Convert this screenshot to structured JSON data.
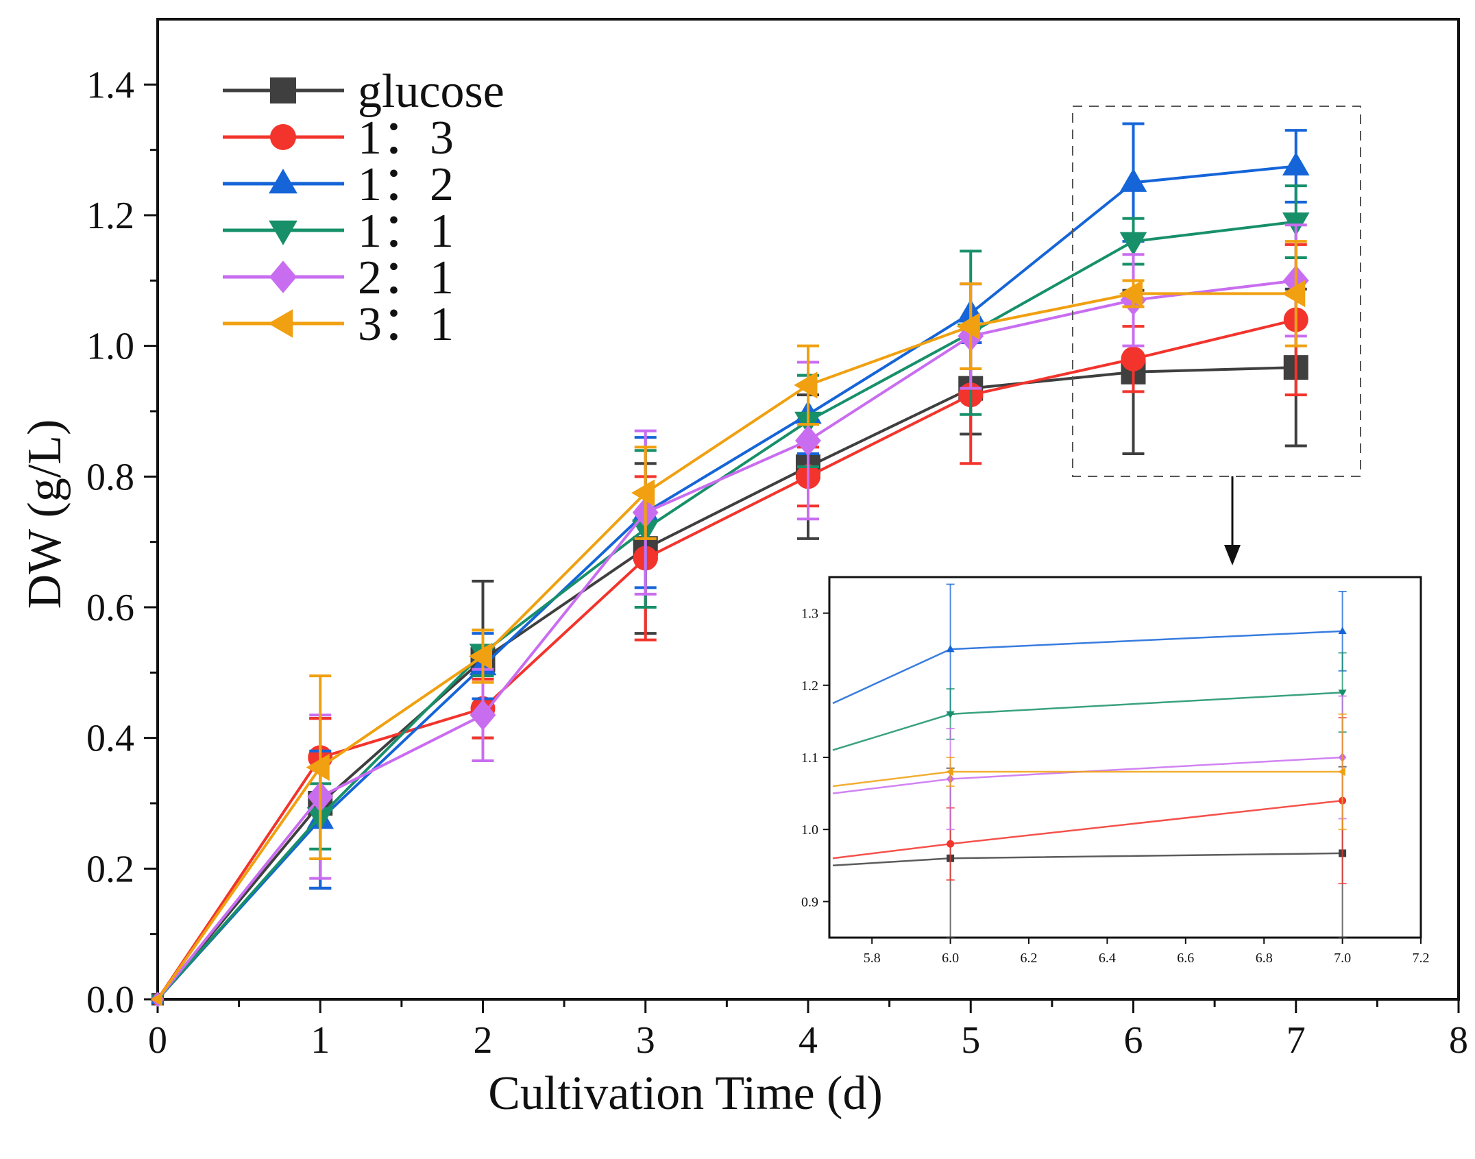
{
  "chart_data": {
    "type": "line",
    "title": "",
    "xlabel": "Cultivation Time (d)",
    "ylabel": "DW (g/L)",
    "xlim": [
      0,
      8
    ],
    "ylim": [
      0,
      1.5
    ],
    "xticks": [
      "0",
      "1",
      "2",
      "3",
      "4",
      "5",
      "6",
      "7",
      "8"
    ],
    "yticks": [
      "0.0",
      "0.2",
      "0.4",
      "0.6",
      "0.8",
      "1.0",
      "1.2",
      "1.4"
    ],
    "grid": false,
    "legend_position": "top-left",
    "x": [
      0,
      1,
      2,
      3,
      4,
      5,
      6,
      7
    ],
    "series": [
      {
        "name": "glucose",
        "color": "#3f3f3f",
        "marker": "square",
        "values": [
          0.0,
          0.3,
          0.52,
          0.69,
          0.815,
          0.935,
          0.96,
          0.967
        ],
        "errors": [
          0.0,
          0.13,
          0.12,
          0.13,
          0.11,
          0.07,
          0.125,
          0.12
        ]
      },
      {
        "name": "1：3",
        "color": "#f2342c",
        "marker": "circle",
        "values": [
          0.0,
          0.37,
          0.445,
          0.675,
          0.8,
          0.925,
          0.98,
          1.04
        ],
        "errors": [
          0.0,
          0.06,
          0.045,
          0.125,
          0.045,
          0.105,
          0.05,
          0.115
        ]
      },
      {
        "name": "1：2",
        "color": "#1565d8",
        "marker": "triangle-up",
        "values": [
          0.0,
          0.275,
          0.51,
          0.745,
          0.895,
          1.05,
          1.25,
          1.275
        ],
        "errors": [
          0.0,
          0.105,
          0.05,
          0.115,
          0.06,
          0.045,
          0.09,
          0.055
        ]
      },
      {
        "name": "1：1",
        "color": "#17906a",
        "marker": "triangle-down",
        "values": [
          0.0,
          0.28,
          0.53,
          0.72,
          0.885,
          1.02,
          1.16,
          1.19
        ],
        "errors": [
          0.0,
          0.05,
          0.035,
          0.12,
          0.07,
          0.125,
          0.035,
          0.055
        ]
      },
      {
        "name": "2：1",
        "color": "#c96df0",
        "marker": "diamond",
        "values": [
          0.0,
          0.31,
          0.435,
          0.745,
          0.855,
          1.015,
          1.07,
          1.1
        ],
        "errors": [
          0.0,
          0.125,
          0.07,
          0.125,
          0.12,
          0.08,
          0.07,
          0.085
        ]
      },
      {
        "name": "3：1",
        "color": "#f0a010",
        "marker": "triangle-left",
        "values": [
          0.0,
          0.355,
          0.525,
          0.775,
          0.94,
          1.03,
          1.08,
          1.08
        ],
        "errors": [
          0.0,
          0.14,
          0.04,
          0.07,
          0.06,
          0.065,
          0.02,
          0.08
        ]
      }
    ],
    "inset": {
      "xlim": [
        5.7,
        7.2
      ],
      "ylim": [
        0.85,
        1.35
      ],
      "xticks": [
        "5.8",
        "6.0",
        "6.2",
        "6.4",
        "6.6",
        "6.8",
        "7.0",
        "7.2"
      ],
      "yticks": [
        "0.9",
        "1.0",
        "1.1",
        "1.2",
        "1.3"
      ],
      "x": [
        5.7,
        6.0,
        7.0
      ],
      "series_values": [
        [
          0.95,
          0.96,
          0.967
        ],
        [
          0.96,
          0.98,
          1.04
        ],
        [
          1.175,
          1.25,
          1.275
        ],
        [
          1.11,
          1.16,
          1.19
        ],
        [
          1.05,
          1.07,
          1.1
        ],
        [
          1.06,
          1.08,
          1.08
        ]
      ],
      "series_errors": [
        [
          0,
          0.125,
          0.12
        ],
        [
          0,
          0.05,
          0.115
        ],
        [
          0,
          0.09,
          0.055
        ],
        [
          0,
          0.035,
          0.055
        ],
        [
          0,
          0.07,
          0.085
        ],
        [
          0,
          0.02,
          0.08
        ]
      ]
    }
  }
}
